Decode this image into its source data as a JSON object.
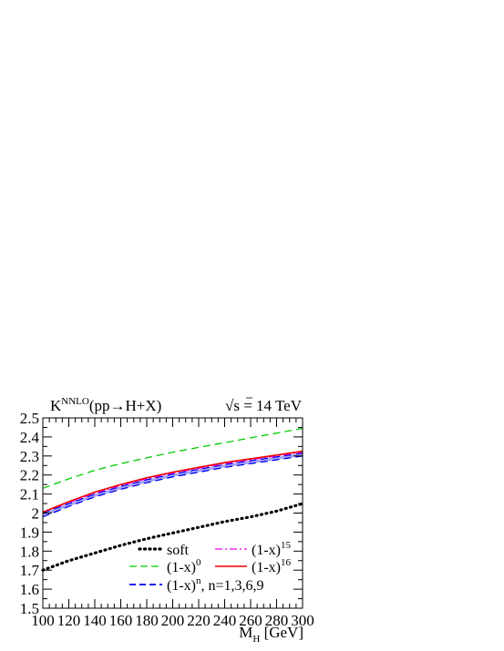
{
  "chart_data": {
    "type": "line",
    "title": {
      "main": "K",
      "main_sup": "NNLO",
      "main_rest": "(pp→H+X)",
      "energy_root": "√",
      "energy_var": "s",
      "energy_rest": " = 14 TeV"
    },
    "xlabel": {
      "main": "M",
      "sub": "H",
      "rest": " [GeV]"
    },
    "xlim": [
      100,
      300
    ],
    "ylim": [
      1.5,
      2.5
    ],
    "xticks": [
      100,
      120,
      140,
      160,
      180,
      200,
      220,
      240,
      260,
      280,
      300
    ],
    "yticks": [
      1.5,
      1.6,
      1.7,
      1.8,
      1.9,
      2,
      2.1,
      2.2,
      2.3,
      2.4,
      2.5
    ],
    "grid": false,
    "legend_position": "bottom-right",
    "x": [
      100,
      120,
      140,
      160,
      180,
      200,
      220,
      240,
      260,
      280,
      300
    ],
    "series": [
      {
        "key": "soft",
        "name": "soft",
        "color": "#000000",
        "style": "dotted",
        "values": [
          1.7,
          1.75,
          1.79,
          1.83,
          1.865,
          1.895,
          1.925,
          1.955,
          1.98,
          2.01,
          2.05
        ]
      },
      {
        "key": "x0",
        "name": "(1-x)",
        "sup": "0",
        "color": "#00cc00",
        "style": "dashed",
        "values": [
          2.13,
          2.18,
          2.225,
          2.26,
          2.29,
          2.32,
          2.345,
          2.37,
          2.395,
          2.42,
          2.445
        ]
      },
      {
        "key": "xn_low",
        "name": "(1-x)",
        "sup": "n",
        "suffix": ", n=1,3,6,9",
        "color": "#0000ee",
        "style": "dashed",
        "values": [
          1.98,
          2.035,
          2.085,
          2.125,
          2.16,
          2.19,
          2.215,
          2.24,
          2.26,
          2.28,
          2.3
        ]
      },
      {
        "key": "xn_high",
        "name": "",
        "color": "#0000ee",
        "style": "dashed",
        "values": [
          2.0,
          2.05,
          2.1,
          2.14,
          2.175,
          2.205,
          2.23,
          2.255,
          2.275,
          2.295,
          2.315
        ]
      },
      {
        "key": "x15",
        "name": "(1-x)",
        "sup": "15",
        "color": "#ee00ee",
        "style": "dashdot",
        "values": [
          2.005,
          2.055,
          2.105,
          2.145,
          2.18,
          2.21,
          2.235,
          2.26,
          2.28,
          2.3,
          2.32
        ]
      },
      {
        "key": "x16",
        "name": "(1-x)",
        "sup": "16",
        "color": "#ee0000",
        "style": "solid",
        "values": [
          2.005,
          2.06,
          2.11,
          2.15,
          2.185,
          2.215,
          2.24,
          2.265,
          2.285,
          2.305,
          2.325
        ]
      }
    ]
  }
}
